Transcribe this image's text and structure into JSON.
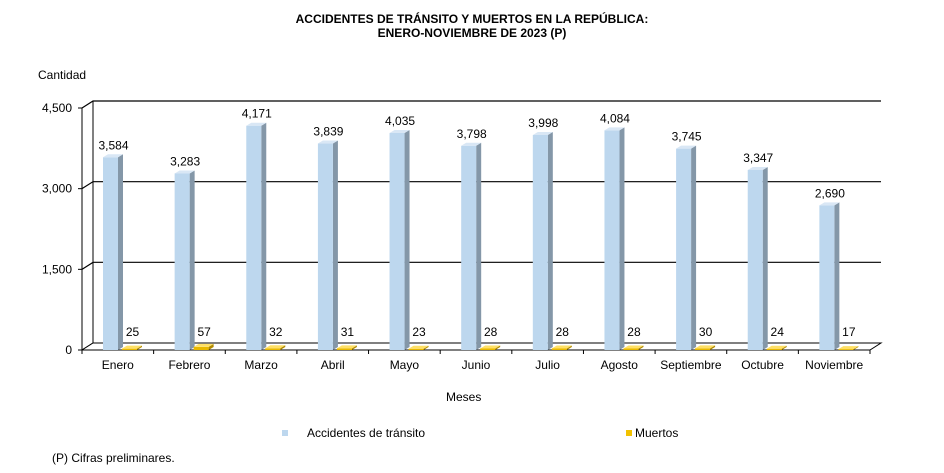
{
  "chart_data": {
    "type": "bar",
    "title": "ACCIDENTES DE TRÁNSITO Y MUERTOS EN LA REPÚBLICA:",
    "subtitle": "ENERO-NOVIEMBRE DE 2023 (P)",
    "ylabel": "Cantidad",
    "xlabel": "Meses",
    "ylim": [
      0,
      4500
    ],
    "yticks": [
      "0",
      "1,500",
      "3,000",
      "4,500"
    ],
    "ytick_values": [
      0,
      1500,
      3000,
      4500
    ],
    "categories": [
      "Enero",
      "Febrero",
      "Marzo",
      "Abril",
      "Mayo",
      "Junio",
      "Julio",
      "Agosto",
      "Septiembre",
      "Octubre",
      "Noviembre"
    ],
    "series": [
      {
        "name": "Accidentes de tránsito",
        "color": "#BDD7EE",
        "values": [
          3584,
          3283,
          4171,
          3839,
          4035,
          3798,
          3998,
          4084,
          3745,
          3347,
          2690
        ],
        "labels": [
          "3,584",
          "3,283",
          "4,171",
          "3,839",
          "4,035",
          "3,798",
          "3,998",
          "4,084",
          "3,745",
          "3,347",
          "2,690"
        ]
      },
      {
        "name": "Muertos",
        "color": "#F2C200",
        "values": [
          25,
          57,
          32,
          31,
          23,
          28,
          28,
          28,
          30,
          24,
          17
        ],
        "labels": [
          "25",
          "57",
          "32",
          "31",
          "23",
          "28",
          "28",
          "28",
          "30",
          "24",
          "17"
        ]
      }
    ],
    "grid": true,
    "legend": "bottom"
  },
  "footnote": "(P) Cifras preliminares."
}
